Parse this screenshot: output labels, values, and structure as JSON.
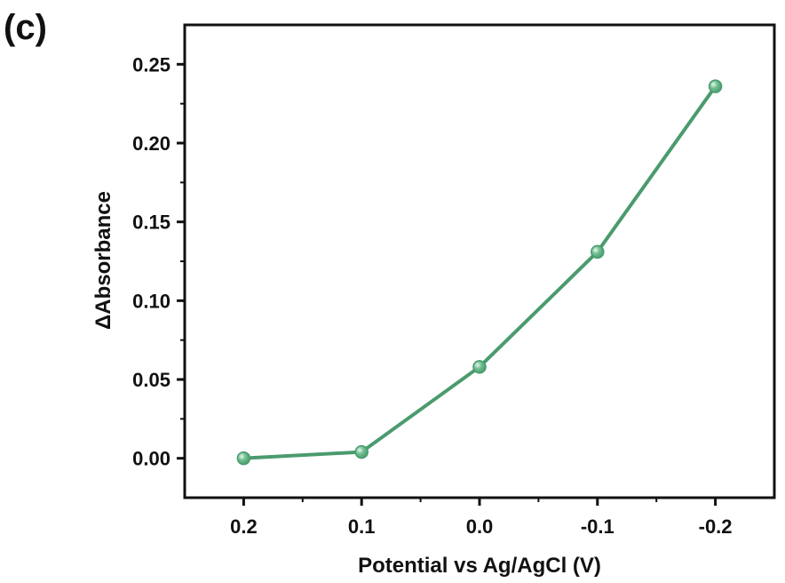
{
  "panel_label": "(c)",
  "colors": {
    "series": "#4a9b6e",
    "marker_fill": "#6fbf8f",
    "axis": "#111111"
  },
  "chart_data": {
    "type": "line",
    "xlabel": "Potential vs Ag/AgCl (V)",
    "ylabel": "ΔAbsorbance",
    "x_reversed": true,
    "xlim": [
      0.25,
      -0.25
    ],
    "ylim": [
      -0.025,
      0.275
    ],
    "x_ticks": [
      0.2,
      0.1,
      0.0,
      -0.1,
      -0.2
    ],
    "x_tick_labels": [
      "0.2",
      "0.1",
      "0.0",
      "-0.1",
      "-0.2"
    ],
    "y_ticks": [
      0.0,
      0.05,
      0.1,
      0.15,
      0.2,
      0.25
    ],
    "y_tick_labels": [
      "0.00",
      "0.05",
      "0.10",
      "0.15",
      "0.20",
      "0.25"
    ],
    "grid": false,
    "markers": "circle",
    "series": [
      {
        "x": [
          0.2,
          0.1,
          0.0,
          -0.1,
          -0.2
        ],
        "y": [
          0.0,
          0.004,
          0.058,
          0.131,
          0.236
        ]
      }
    ]
  }
}
